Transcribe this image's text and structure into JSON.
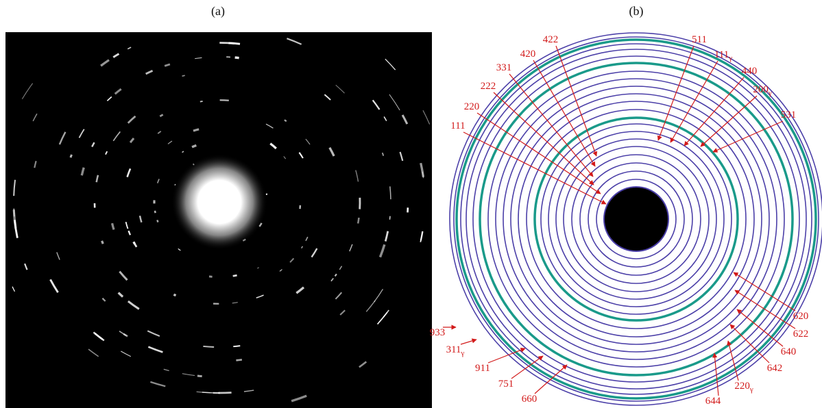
{
  "panels": [
    {
      "caption": "(a)"
    },
    {
      "caption": "(b)"
    }
  ],
  "labels": [
    {
      "text": "422"
    },
    {
      "text": "420"
    },
    {
      "text": "331"
    },
    {
      "text": "222"
    },
    {
      "text": "220"
    },
    {
      "text": "111"
    },
    {
      "text": "511"
    },
    {
      "text": "111",
      "sub": "γ"
    },
    {
      "text": "440"
    },
    {
      "text": "200",
      "sub": "γ"
    },
    {
      "text": "531"
    },
    {
      "text": "620"
    },
    {
      "text": "622"
    },
    {
      "text": "640"
    },
    {
      "text": "642"
    },
    {
      "text": "220",
      "sub": "γ"
    },
    {
      "text": "644"
    },
    {
      "text": "933"
    },
    {
      "text": "311",
      "sub": "γ"
    },
    {
      "text": "911"
    },
    {
      "text": "751"
    },
    {
      "text": "660"
    }
  ]
}
